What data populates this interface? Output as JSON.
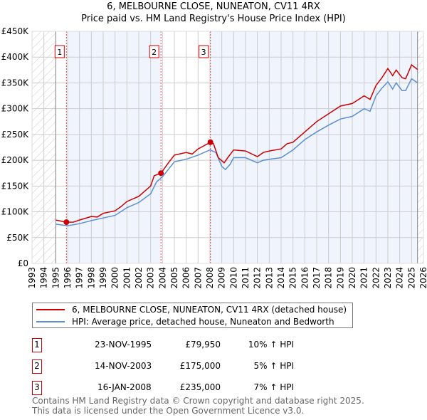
{
  "chart_data": {
    "type": "line",
    "title": "6, MELBOURNE CLOSE, NUNEATON, CV11 4RX",
    "subtitle": "Price paid vs. HM Land Registry's House Price Index (HPI)",
    "xlim": [
      1993,
      2026
    ],
    "ylim": [
      0,
      450000
    ],
    "x_ticks": [
      "1993",
      "1994",
      "1995",
      "1996",
      "1997",
      "1998",
      "1999",
      "2000",
      "2001",
      "2002",
      "2003",
      "2004",
      "2005",
      "2006",
      "2007",
      "2008",
      "2009",
      "2010",
      "2011",
      "2012",
      "2013",
      "2014",
      "2015",
      "2016",
      "2017",
      "2018",
      "2019",
      "2020",
      "2021",
      "2022",
      "2023",
      "2024",
      "2025",
      "2026"
    ],
    "y_ticks": [
      {
        "v": 0,
        "label": "£0"
      },
      {
        "v": 50000,
        "label": "£50K"
      },
      {
        "v": 100000,
        "label": "£100K"
      },
      {
        "v": 150000,
        "label": "£150K"
      },
      {
        "v": 200000,
        "label": "£200K"
      },
      {
        "v": 250000,
        "label": "£250K"
      },
      {
        "v": 300000,
        "label": "£300K"
      },
      {
        "v": 350000,
        "label": "£350K"
      },
      {
        "v": 400000,
        "label": "£400K"
      },
      {
        "v": 450000,
        "label": "£450K"
      }
    ],
    "grid": true,
    "data_range": [
      1995,
      2025.5
    ],
    "series": [
      {
        "name": "6, MELBOURNE CLOSE, NUNEATON, CV11 4RX (detached house)",
        "color": "#cc0000",
        "x": [
          1995,
          1995.9,
          1996.5,
          1997,
          1998,
          1998.5,
          1999,
          2000,
          2000.5,
          2001,
          2002,
          2002.5,
          2003,
          2003.3,
          2003.87,
          2004.5,
          2005,
          2006,
          2006.5,
          2007,
          2008.04,
          2008.3,
          2008.7,
          2009.2,
          2009.5,
          2010,
          2011,
          2012,
          2012.5,
          2013,
          2014,
          2014.5,
          2015,
          2016,
          2017,
          2018,
          2019,
          2020,
          2021,
          2021.5,
          2022,
          2022.5,
          2023,
          2023.4,
          2023.7,
          2024.2,
          2024.5,
          2025,
          2025.5
        ],
        "y": [
          84000,
          79950,
          80000,
          84000,
          91000,
          90000,
          97000,
          102000,
          110000,
          120000,
          130000,
          140000,
          150000,
          170000,
          175000,
          195000,
          210000,
          215000,
          212000,
          222000,
          235000,
          232000,
          205000,
          195000,
          205000,
          220000,
          218000,
          207000,
          215000,
          218000,
          222000,
          232000,
          235000,
          255000,
          275000,
          290000,
          305000,
          310000,
          325000,
          318000,
          345000,
          360000,
          378000,
          364000,
          375000,
          360000,
          358000,
          385000,
          376000
        ]
      },
      {
        "name": "HPI: Average price, detached house, Nuneaton and Bedworth",
        "color": "#5b8fd4",
        "x": [
          1995,
          1996,
          1997,
          1998,
          1999,
          2000,
          2001,
          2002,
          2003,
          2003.5,
          2004,
          2005,
          2006,
          2007,
          2008,
          2008.5,
          2009,
          2009.3,
          2009.7,
          2010,
          2011,
          2012,
          2012.5,
          2013,
          2014,
          2015,
          2016,
          2017,
          2018,
          2019,
          2020,
          2021,
          2021.5,
          2022,
          2022.5,
          2023,
          2023.4,
          2023.7,
          2024.2,
          2024.5,
          2025,
          2025.5
        ],
        "y": [
          76000,
          73000,
          77000,
          83000,
          88000,
          93000,
          108000,
          118000,
          135000,
          158000,
          168000,
          197000,
          202000,
          210000,
          220000,
          215000,
          188000,
          182000,
          192000,
          205000,
          205000,
          195000,
          200000,
          202000,
          205000,
          220000,
          240000,
          255000,
          268000,
          280000,
          285000,
          300000,
          295000,
          325000,
          340000,
          352000,
          338000,
          350000,
          335000,
          335000,
          358000,
          350000
        ]
      }
    ],
    "sales": [
      {
        "num": "1",
        "x": 1995.9,
        "price": 79950
      },
      {
        "num": "2",
        "x": 2003.87,
        "price": 175000
      },
      {
        "num": "3",
        "x": 2008.04,
        "price": 235000
      }
    ]
  },
  "header": {
    "title": "6, MELBOURNE CLOSE, NUNEATON, CV11 4RX",
    "subtitle": "Price paid vs. HM Land Registry's House Price Index (HPI)"
  },
  "legend": {
    "items": [
      {
        "label": "6, MELBOURNE CLOSE, NUNEATON, CV11 4RX (detached house)",
        "color": "#cc0000"
      },
      {
        "label": "HPI: Average price, detached house, Nuneaton and Bedworth",
        "color": "#5b8fd4"
      }
    ]
  },
  "table": {
    "rows": [
      {
        "num": "1",
        "date": "23-NOV-1995",
        "price": "£79,950",
        "hpi": "10% ↑ HPI"
      },
      {
        "num": "2",
        "date": "14-NOV-2003",
        "price": "£175,000",
        "hpi": "5% ↑ HPI"
      },
      {
        "num": "3",
        "date": "16-JAN-2008",
        "price": "£235,000",
        "hpi": "7% ↑ HPI"
      }
    ]
  },
  "footer": {
    "line1": "Contains HM Land Registry data © Crown copyright and database right 2025.",
    "line2": "This data is licensed under the Open Government Licence v3.0."
  }
}
